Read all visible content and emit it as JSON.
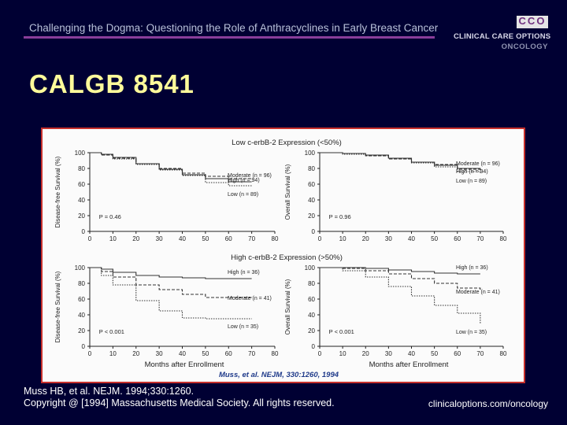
{
  "header": {
    "title": "Challenging the Dogma: Questioning the Role of Anthracyclines in Early Breast Cancer"
  },
  "logo": {
    "letters": "CCO",
    "line1": "CLINICAL CARE OPTIONS",
    "line2": "ONCOLOGY"
  },
  "slide_title": "CALGB 8541",
  "colors": {
    "background": "#000033",
    "title": "#fffb9a",
    "rule": "#8a3e9a",
    "frame_border": "#c7302c",
    "curve": "#333333",
    "citation": "#1f3a8a"
  },
  "footer": {
    "citation_line1": "Muss HB, et al. NEJM. 1994;330:1260.",
    "citation_line2": "Copyright @ [1994] Massachusetts Medical Society. All rights reserved.",
    "url": "clinicaloptions.com/oncology"
  },
  "figure": {
    "row_titles": [
      "Low c-erbB-2 Expression (<50%)",
      "High c-erbB-2 Expression (>50%)"
    ],
    "x_axis_label": "Months after Enrollment",
    "citation": "Muss, et al. NEJM, 330:1260, 1994"
  },
  "chart_data": [
    {
      "type": "line",
      "title": "Low c-erbB-2 Expression (<50%)",
      "ylabel": "Disease-free Survival (%)",
      "xlabel": "",
      "xlim": [
        0,
        80
      ],
      "ylim": [
        0,
        100
      ],
      "xticks": [
        0,
        10,
        20,
        30,
        40,
        50,
        60,
        70,
        80
      ],
      "yticks": [
        0,
        20,
        40,
        60,
        80,
        100
      ],
      "annotation": "P = 0.46",
      "series": [
        {
          "name": "Moderate (n = 96)",
          "x": [
            0,
            5,
            10,
            20,
            30,
            40,
            50,
            60,
            70
          ],
          "y": [
            100,
            98,
            94,
            86,
            79,
            72,
            67,
            63,
            63
          ]
        },
        {
          "name": "High (n = 94)",
          "x": [
            0,
            5,
            10,
            20,
            30,
            40,
            50,
            60,
            70
          ],
          "y": [
            100,
            97,
            93,
            86,
            80,
            74,
            70,
            67,
            66
          ]
        },
        {
          "name": "Low (n = 89)",
          "x": [
            0,
            5,
            10,
            20,
            30,
            40,
            50,
            60,
            70
          ],
          "y": [
            100,
            97,
            92,
            85,
            78,
            71,
            62,
            58,
            57
          ]
        }
      ]
    },
    {
      "type": "line",
      "title": "",
      "ylabel": "Overall Survival (%)",
      "xlabel": "",
      "xlim": [
        0,
        80
      ],
      "ylim": [
        0,
        100
      ],
      "xticks": [
        0,
        10,
        20,
        30,
        40,
        50,
        60,
        70,
        80
      ],
      "yticks": [
        0,
        20,
        40,
        60,
        80,
        100
      ],
      "annotation": "P = 0.96",
      "series": [
        {
          "name": "Moderate (n = 96)",
          "x": [
            0,
            10,
            20,
            30,
            40,
            50,
            60,
            70
          ],
          "y": [
            100,
            99,
            97,
            93,
            88,
            84,
            80,
            78
          ]
        },
        {
          "name": "High (n = 94)",
          "x": [
            0,
            10,
            20,
            30,
            40,
            50,
            60,
            70
          ],
          "y": [
            100,
            99,
            96,
            92,
            88,
            85,
            79,
            77
          ]
        },
        {
          "name": "Low (n = 89)",
          "x": [
            0,
            10,
            20,
            30,
            40,
            50,
            60,
            70
          ],
          "y": [
            100,
            98,
            96,
            92,
            87,
            82,
            76,
            74
          ]
        }
      ]
    },
    {
      "type": "line",
      "title": "High c-erbB-2 Expression (>50%)",
      "ylabel": "Disease-free Survival (%)",
      "xlabel": "Months after Enrollment",
      "xlim": [
        0,
        80
      ],
      "ylim": [
        0,
        100
      ],
      "xticks": [
        0,
        10,
        20,
        30,
        40,
        50,
        60,
        70,
        80
      ],
      "yticks": [
        0,
        20,
        40,
        60,
        80,
        100
      ],
      "annotation": "P < 0.001",
      "series": [
        {
          "name": "High (n = 36)",
          "x": [
            0,
            5,
            10,
            20,
            30,
            40,
            50,
            60,
            70
          ],
          "y": [
            100,
            98,
            94,
            90,
            88,
            87,
            86,
            86,
            86
          ]
        },
        {
          "name": "Moderate (n = 41)",
          "x": [
            0,
            5,
            10,
            20,
            30,
            40,
            50,
            60,
            70
          ],
          "y": [
            100,
            95,
            88,
            78,
            72,
            66,
            62,
            62,
            62
          ]
        },
        {
          "name": "Low (n = 35)",
          "x": [
            0,
            5,
            10,
            20,
            30,
            40,
            50,
            60,
            70
          ],
          "y": [
            100,
            90,
            78,
            58,
            45,
            36,
            35,
            35,
            35
          ]
        }
      ]
    },
    {
      "type": "line",
      "title": "",
      "ylabel": "Overall Survival (%)",
      "xlabel": "Months after Enrollment",
      "xlim": [
        0,
        80
      ],
      "ylim": [
        0,
        100
      ],
      "xticks": [
        0,
        10,
        20,
        30,
        40,
        50,
        60,
        70,
        80
      ],
      "yticks": [
        0,
        20,
        40,
        60,
        80,
        100
      ],
      "annotation": "P < 0.001",
      "series": [
        {
          "name": "High (n = 36)",
          "x": [
            0,
            10,
            20,
            30,
            40,
            50,
            60,
            70
          ],
          "y": [
            100,
            100,
            99,
            97,
            95,
            93,
            92,
            92
          ]
        },
        {
          "name": "Moderate (n = 41)",
          "x": [
            0,
            10,
            20,
            30,
            40,
            50,
            60,
            70
          ],
          "y": [
            100,
            99,
            96,
            92,
            86,
            80,
            74,
            70
          ]
        },
        {
          "name": "Low (n = 35)",
          "x": [
            0,
            10,
            20,
            30,
            40,
            50,
            60,
            70
          ],
          "y": [
            100,
            96,
            88,
            76,
            64,
            52,
            42,
            28
          ]
        }
      ]
    }
  ]
}
